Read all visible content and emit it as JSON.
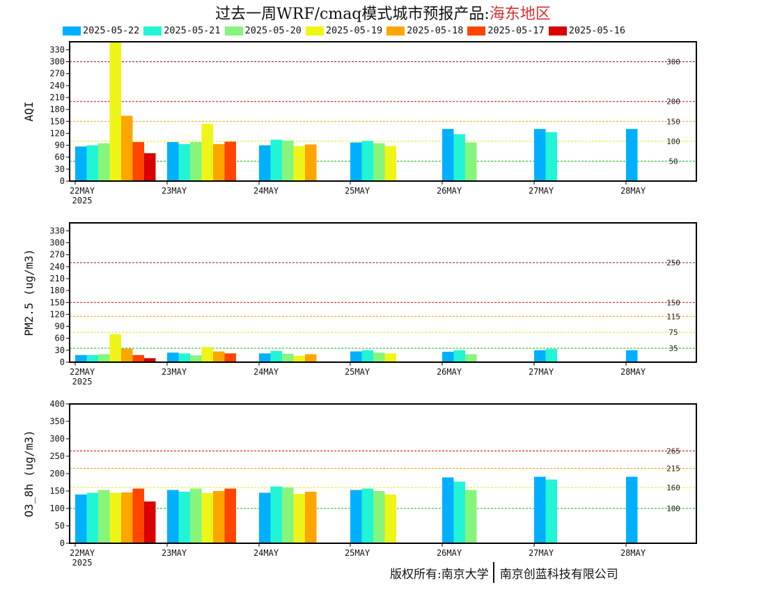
{
  "title": {
    "main": "过去一周WRF/cmaq模式城市预报产品:",
    "region": "海东地区"
  },
  "legend": [
    {
      "label": "2025-05-22",
      "color": "#00b0ff"
    },
    {
      "label": "2025-05-21",
      "color": "#22f5d5"
    },
    {
      "label": "2025-05-20",
      "color": "#86f57c"
    },
    {
      "label": "2025-05-19",
      "color": "#eef517"
    },
    {
      "label": "2025-05-18",
      "color": "#ffa500"
    },
    {
      "label": "2025-05-17",
      "color": "#ff4500"
    },
    {
      "label": "2025-05-16",
      "color": "#d80000"
    }
  ],
  "footer": {
    "left": "版权所有:南京大学",
    "right": "南京创蓝科技有限公司"
  },
  "chart_data": [
    {
      "type": "bar",
      "ylabel": "AQI",
      "ylim": [
        0,
        350
      ],
      "yticks": [
        0,
        30,
        60,
        90,
        120,
        150,
        180,
        210,
        240,
        270,
        300,
        330
      ],
      "categories": [
        "22MAY",
        "23MAY",
        "24MAY",
        "25MAY",
        "26MAY",
        "27MAY",
        "28MAY"
      ],
      "year_label": "2025",
      "thresholds": [
        {
          "value": 50,
          "label": "50",
          "color": "#00c000"
        },
        {
          "value": 100,
          "label": "100",
          "color": "#e8e800"
        },
        {
          "value": 150,
          "label": "150",
          "color": "#ff9900"
        },
        {
          "value": 200,
          "label": "200",
          "color": "#dd0000"
        },
        {
          "value": 300,
          "label": "300",
          "color": "#990044"
        }
      ],
      "series": [
        {
          "name": "2025-05-22",
          "values": [
            87,
            98,
            90,
            97,
            131,
            131,
            131
          ]
        },
        {
          "name": "2025-05-21",
          "values": [
            90,
            93,
            104,
            101,
            118,
            123,
            null
          ]
        },
        {
          "name": "2025-05-20",
          "values": [
            95,
            98,
            102,
            95,
            97,
            null,
            null
          ]
        },
        {
          "name": "2025-05-19",
          "values": [
            350,
            144,
            88,
            88,
            null,
            null,
            null
          ]
        },
        {
          "name": "2025-05-18",
          "values": [
            164,
            93,
            92,
            null,
            null,
            null,
            null
          ]
        },
        {
          "name": "2025-05-17",
          "values": [
            98,
            99,
            null,
            null,
            null,
            null,
            null
          ]
        },
        {
          "name": "2025-05-16",
          "values": [
            70,
            null,
            null,
            null,
            null,
            null,
            null
          ]
        }
      ]
    },
    {
      "type": "bar",
      "ylabel": "PM2.5 (ug/m3)",
      "ylim": [
        0,
        350
      ],
      "yticks": [
        0,
        30,
        60,
        90,
        120,
        150,
        180,
        210,
        240,
        270,
        300,
        330
      ],
      "categories": [
        "22MAY",
        "23MAY",
        "24MAY",
        "25MAY",
        "26MAY",
        "27MAY",
        "28MAY"
      ],
      "year_label": "2025",
      "thresholds": [
        {
          "value": 35,
          "label": "35",
          "color": "#00c000"
        },
        {
          "value": 75,
          "label": "75",
          "color": "#e8e800"
        },
        {
          "value": 115,
          "label": "115",
          "color": "#ff9900"
        },
        {
          "value": 150,
          "label": "150",
          "color": "#dd0000"
        },
        {
          "value": 250,
          "label": "250",
          "color": "#990044"
        }
      ],
      "series": [
        {
          "name": "2025-05-22",
          "values": [
            18,
            24,
            22,
            27,
            26,
            30,
            30
          ]
        },
        {
          "name": "2025-05-21",
          "values": [
            18,
            22,
            28,
            30,
            30,
            33,
            null
          ]
        },
        {
          "name": "2025-05-20",
          "values": [
            20,
            17,
            21,
            24,
            20,
            null,
            null
          ]
        },
        {
          "name": "2025-05-19",
          "values": [
            70,
            38,
            16,
            22,
            null,
            null,
            null
          ]
        },
        {
          "name": "2025-05-18",
          "values": [
            34,
            27,
            20,
            null,
            null,
            null,
            null
          ]
        },
        {
          "name": "2025-05-17",
          "values": [
            18,
            22,
            null,
            null,
            null,
            null,
            null
          ]
        },
        {
          "name": "2025-05-16",
          "values": [
            10,
            null,
            null,
            null,
            null,
            null,
            null
          ]
        }
      ]
    },
    {
      "type": "bar",
      "ylabel": "O3_8h (ug/m3)",
      "ylim": [
        0,
        400
      ],
      "yticks": [
        0,
        50,
        100,
        150,
        200,
        250,
        300,
        350,
        400
      ],
      "categories": [
        "22MAY",
        "23MAY",
        "24MAY",
        "25MAY",
        "26MAY",
        "27MAY",
        "28MAY"
      ],
      "year_label": "2025",
      "thresholds": [
        {
          "value": 100,
          "label": "100",
          "color": "#00c000"
        },
        {
          "value": 160,
          "label": "160",
          "color": "#e8e800"
        },
        {
          "value": 215,
          "label": "215",
          "color": "#ff9900"
        },
        {
          "value": 265,
          "label": "265",
          "color": "#dd0000"
        }
      ],
      "series": [
        {
          "name": "2025-05-22",
          "values": [
            140,
            153,
            145,
            153,
            189,
            191,
            191
          ]
        },
        {
          "name": "2025-05-21",
          "values": [
            145,
            148,
            163,
            157,
            177,
            183,
            null
          ]
        },
        {
          "name": "2025-05-20",
          "values": [
            153,
            157,
            160,
            150,
            153,
            null,
            null
          ]
        },
        {
          "name": "2025-05-19",
          "values": [
            145,
            144,
            142,
            140,
            null,
            null,
            null
          ]
        },
        {
          "name": "2025-05-18",
          "values": [
            146,
            150,
            148,
            null,
            null,
            null,
            null
          ]
        },
        {
          "name": "2025-05-17",
          "values": [
            157,
            157,
            null,
            null,
            null,
            null,
            null
          ]
        },
        {
          "name": "2025-05-16",
          "values": [
            120,
            null,
            null,
            null,
            null,
            null,
            null
          ]
        }
      ]
    }
  ]
}
